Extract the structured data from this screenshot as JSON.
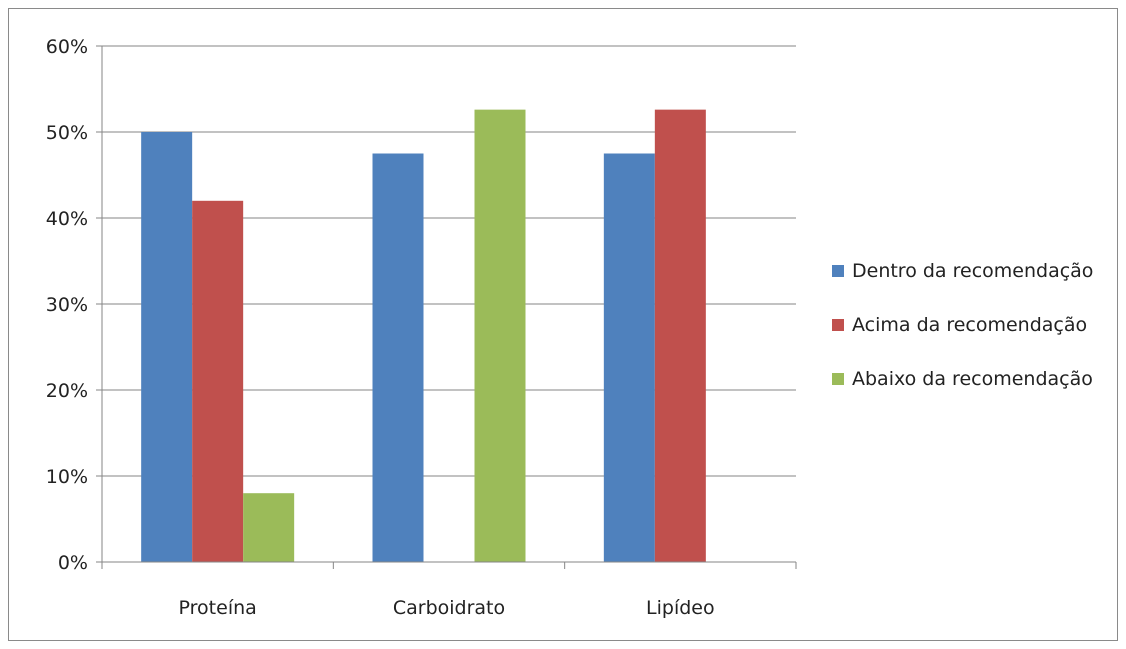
{
  "chart_data": {
    "type": "bar",
    "categories": [
      "Proteína",
      "Carboidrato",
      "Lipídeo"
    ],
    "series": [
      {
        "name": "Dentro da recomendação",
        "color": "#4f81bd",
        "values": [
          50,
          47.5,
          47.5
        ]
      },
      {
        "name": "Acima da recomendação",
        "color": "#c0504d",
        "values": [
          42,
          0,
          52.6
        ]
      },
      {
        "name": "Abaixo da recomendação",
        "color": "#9bbb59",
        "values": [
          8,
          52.6,
          0
        ]
      }
    ],
    "ylim": [
      0,
      60
    ],
    "yticks": [
      0,
      10,
      20,
      30,
      40,
      50,
      60
    ],
    "ytick_labels": [
      "0%",
      "10%",
      "20%",
      "30%",
      "40%",
      "50%",
      "60%"
    ],
    "grid": true,
    "legend": "right"
  }
}
